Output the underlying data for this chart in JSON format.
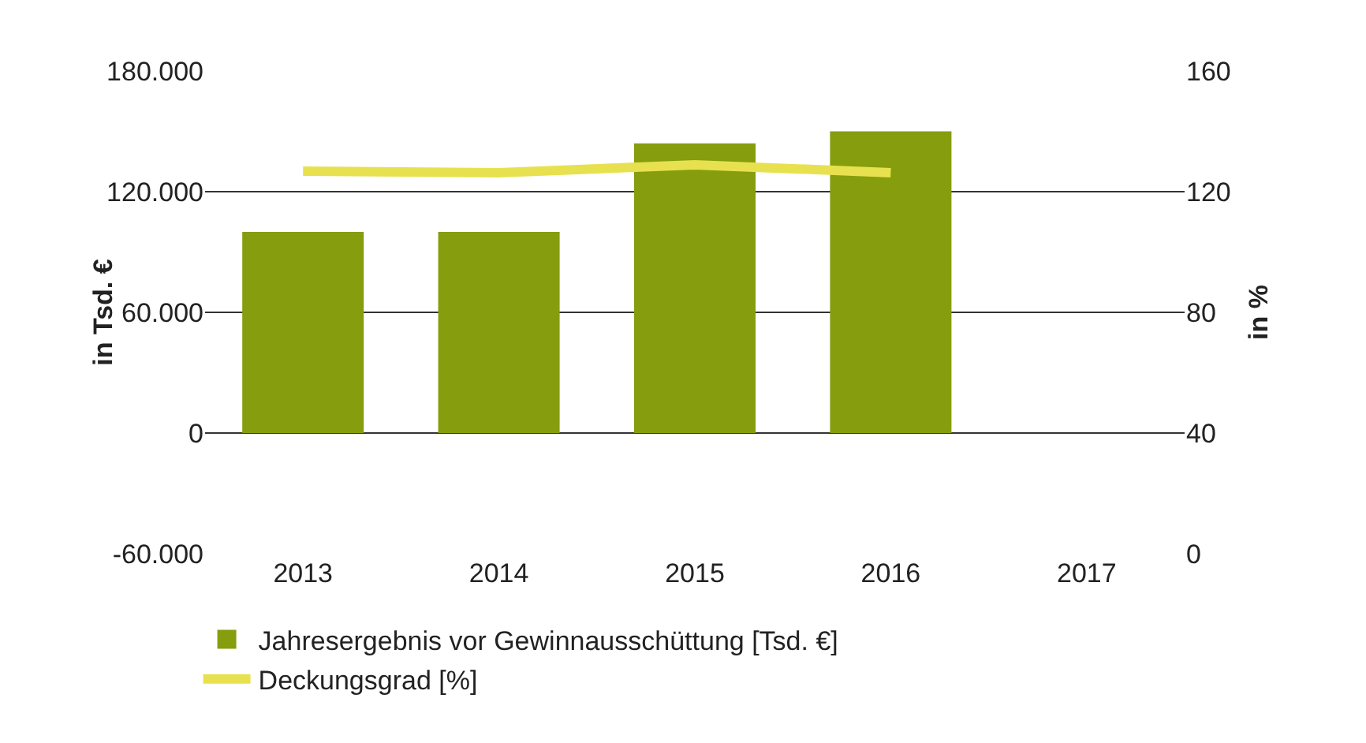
{
  "chart_data": {
    "type": "bar",
    "ylabel": "in Tsd. €",
    "y2label": "in %",
    "categories": [
      "2013",
      "2014",
      "2015",
      "2016",
      "2017"
    ],
    "series": [
      {
        "name": "Jahresergebnis vor Gewinnausschüttung [Tsd. €]",
        "color": "#869d0d",
        "values": [
          100000,
          100000,
          144000,
          150000,
          null
        ]
      },
      {
        "name": "Deckungsgrad [%]",
        "type": "line",
        "axis": "y2",
        "color": "#e8e14f",
        "values": [
          126.8,
          126.3,
          128.9,
          126.3,
          null
        ]
      }
    ],
    "ylim": [
      -60000,
      180000
    ],
    "yticks": [
      {
        "value": -60000,
        "label": "-60.000"
      },
      0,
      {
        "value": 60000,
        "label": "60.000"
      },
      {
        "value": 120000,
        "label": "120.000"
      },
      {
        "value": 180000,
        "label": "180.000"
      }
    ],
    "y2lim": [
      0,
      160
    ],
    "y2ticks": [
      0,
      40,
      80,
      120,
      160
    ],
    "grid": "y",
    "legend": "bottom",
    "marker": "none",
    "line_style": "solid"
  }
}
